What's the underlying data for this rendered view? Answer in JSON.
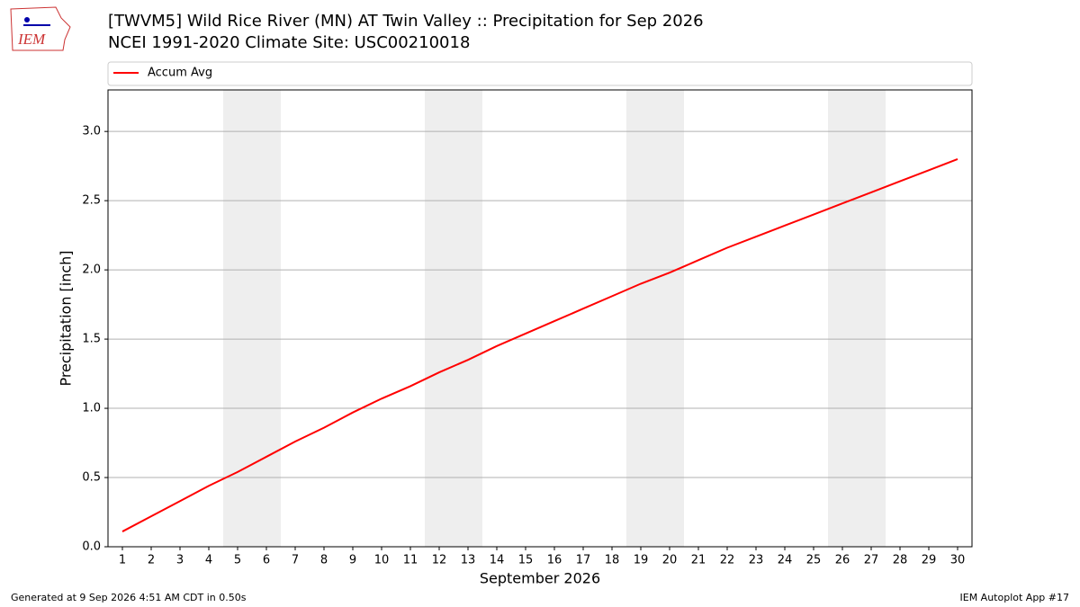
{
  "logo": {
    "text": "IEM"
  },
  "footer": {
    "left": "Generated at 9 Sep 2026 4:51 AM CDT in 0.50s",
    "right": "IEM Autoplot App #17"
  },
  "chart_data": {
    "type": "line",
    "title": "[TWVM5] Wild Rice River (MN)  AT Twin Valley :: Precipitation for Sep 2026",
    "subtitle": "NCEI 1991-2020 Climate Site: USC00210018",
    "x_label": "September 2026",
    "y_label": "Precipitation [inch]",
    "x": [
      1,
      2,
      3,
      4,
      5,
      6,
      7,
      8,
      9,
      10,
      11,
      12,
      13,
      14,
      15,
      16,
      17,
      18,
      19,
      20,
      21,
      22,
      23,
      24,
      25,
      26,
      27,
      28,
      29,
      30
    ],
    "series": [
      {
        "name": "Accum Avg",
        "color": "#ff0000",
        "values": [
          0.11,
          0.22,
          0.33,
          0.44,
          0.54,
          0.65,
          0.76,
          0.86,
          0.97,
          1.07,
          1.16,
          1.26,
          1.35,
          1.45,
          1.54,
          1.63,
          1.72,
          1.81,
          1.9,
          1.98,
          2.07,
          2.16,
          2.24,
          2.32,
          2.4,
          2.48,
          2.56,
          2.64,
          2.72,
          2.8
        ]
      }
    ],
    "xlim": [
      0.5,
      30.5
    ],
    "xticks": [
      1,
      2,
      3,
      4,
      5,
      6,
      7,
      8,
      9,
      10,
      11,
      12,
      13,
      14,
      15,
      16,
      17,
      18,
      19,
      20,
      21,
      22,
      23,
      24,
      25,
      26,
      27,
      28,
      29,
      30
    ],
    "ylim": [
      0,
      3.3
    ],
    "yticks": [
      {
        "value": 0,
        "label": "0.0"
      },
      0.5,
      {
        "value": 1,
        "label": "1.0"
      },
      1.5,
      {
        "value": 2,
        "label": "2.0"
      },
      2.5,
      {
        "value": 3,
        "label": "3.0"
      }
    ],
    "grid": true,
    "shaded_spans": [
      [
        4.5,
        6.5
      ],
      [
        11.5,
        13.5
      ],
      [
        18.5,
        20.5
      ],
      [
        25.5,
        27.5
      ]
    ],
    "shade_color": "#eeeeee",
    "legend": "top"
  }
}
